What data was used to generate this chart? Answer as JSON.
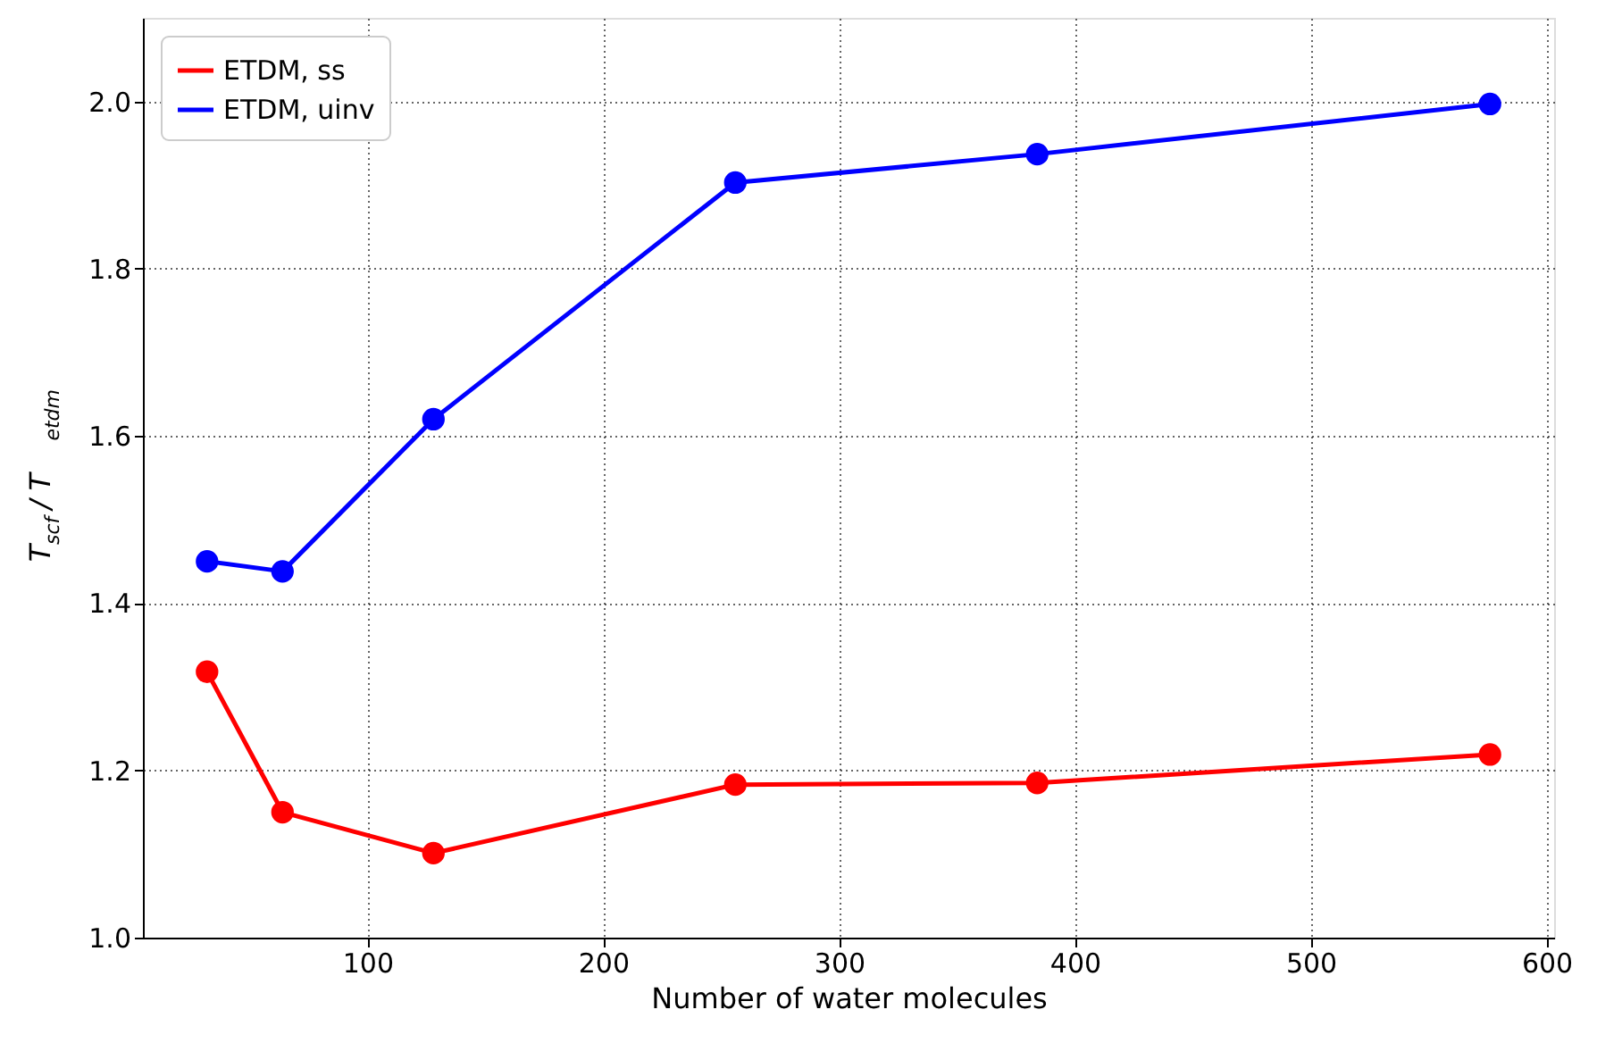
{
  "chart_data": {
    "type": "line",
    "xlabel": "Number of water molecules",
    "ylabel": "T$_{scf}$ / T$_{etdm}$",
    "x": [
      32,
      64,
      128,
      256,
      384,
      576
    ],
    "series": [
      {
        "name": "ETDM, ss",
        "color": "#ff0000",
        "values": [
          1.318,
          1.15,
          1.101,
          1.183,
          1.185,
          1.219
        ]
      },
      {
        "name": "ETDM, uinv",
        "color": "#0000ff",
        "values": [
          1.45,
          1.438,
          1.62,
          1.903,
          1.937,
          1.997
        ]
      }
    ],
    "xlim": [
      4.8,
      603.2
    ],
    "ylim": [
      1.0,
      2.1
    ],
    "xticks": [
      100,
      200,
      300,
      400,
      500,
      600
    ],
    "yticks": [
      {
        "value": 1.0,
        "label": "1.0"
      },
      {
        "value": 1.2,
        "label": "1.2"
      },
      {
        "value": 1.4,
        "label": "1.4"
      },
      {
        "value": 1.6,
        "label": "1.6"
      },
      {
        "value": 1.8,
        "label": "1.8"
      },
      {
        "value": 2.0,
        "label": "2.0"
      }
    ],
    "grid": true,
    "legend": "top left",
    "marker": "circle",
    "line_style": "solid"
  }
}
